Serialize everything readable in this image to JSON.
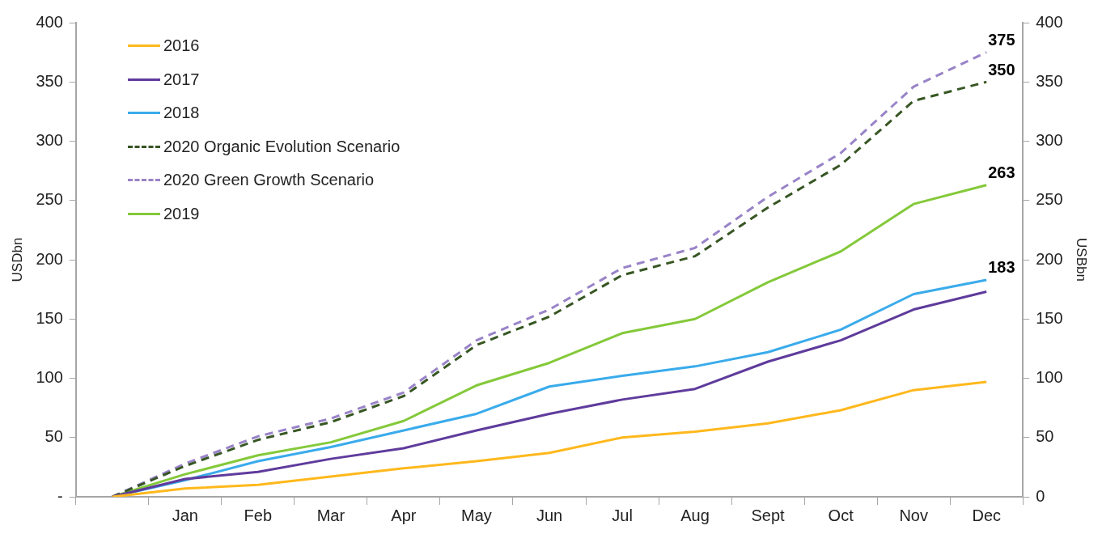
{
  "chart_data": {
    "type": "line",
    "ylabel": "USDbn",
    "y2label": "USBbn",
    "categories": [
      null,
      "Jan",
      "Feb",
      "Mar",
      "Apr",
      "May",
      "Jun",
      "Jul",
      "Aug",
      "Sept",
      "Oct",
      "Nov",
      "Dec"
    ],
    "series": [
      {
        "name": "2016",
        "color": "#ffb81c",
        "values": [
          0,
          7,
          10,
          17,
          24,
          30,
          37,
          50,
          55,
          62,
          73,
          90,
          97
        ]
      },
      {
        "name": "2017",
        "color": "#5f3b9c",
        "values": [
          0,
          15,
          21,
          32,
          41,
          56,
          70,
          82,
          91,
          114,
          132,
          158,
          173
        ]
      },
      {
        "name": "2018",
        "color": "#3aabeb",
        "values": [
          0,
          14,
          30,
          42,
          56,
          70,
          93,
          102,
          110,
          122,
          141,
          171,
          183
        ],
        "value_labels": [
          null,
          null,
          null,
          null,
          null,
          null,
          null,
          null,
          null,
          null,
          null,
          null,
          "183"
        ]
      },
      {
        "name": "2020 Organic Evolution Scenario",
        "color": "#375623",
        "line_style": "dashed",
        "values": [
          0,
          26,
          48,
          63,
          85,
          128,
          152,
          187,
          203,
          244,
          280,
          334,
          350
        ],
        "value_labels": [
          null,
          null,
          null,
          null,
          null,
          null,
          null,
          null,
          null,
          null,
          null,
          null,
          "350"
        ]
      },
      {
        "name": "2020 Green Growth Scenario",
        "color": "#9983c8",
        "line_style": "dashed",
        "values": [
          0,
          28,
          51,
          66,
          88,
          132,
          158,
          193,
          210,
          253,
          290,
          346,
          375
        ],
        "value_labels": [
          null,
          null,
          null,
          null,
          null,
          null,
          null,
          null,
          null,
          null,
          null,
          null,
          "375"
        ]
      },
      {
        "name": "2019",
        "color": "#84c93a",
        "values": [
          0,
          19,
          35,
          46,
          64,
          94,
          113,
          138,
          150,
          181,
          207,
          247,
          263
        ],
        "value_labels": [
          null,
          null,
          null,
          null,
          null,
          null,
          null,
          null,
          null,
          null,
          null,
          null,
          "263"
        ]
      }
    ],
    "ylim": [
      0,
      400
    ],
    "yticks": [
      {
        "value": 0,
        "label": "-"
      },
      50,
      100,
      150,
      200,
      250,
      300,
      350,
      400
    ],
    "y2lim": [
      0,
      400
    ],
    "y2ticks": [
      0,
      50,
      100,
      150,
      200,
      250,
      300,
      350,
      400
    ],
    "grid": false,
    "legend": "top left",
    "marker": "none",
    "line_style": "solid"
  }
}
